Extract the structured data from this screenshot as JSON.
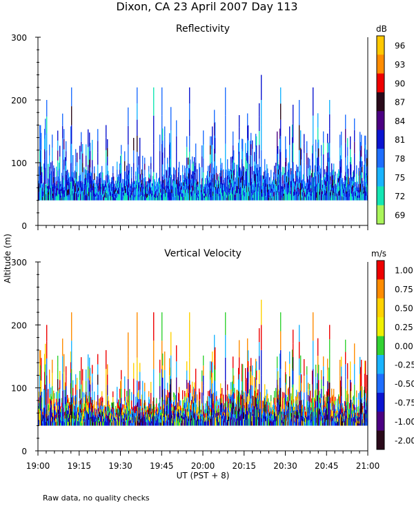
{
  "page": {
    "title": "Dixon, CA 23 April 2007  Day 113",
    "ylabel": "Altitude (m)",
    "xlabel": "UT  (PST + 8)",
    "footnote": "Raw data, no quality checks",
    "xticks": [
      "19:00",
      "19:15",
      "19:30",
      "19:45",
      "20:00",
      "20:15",
      "20:30",
      "20:45",
      "21:00"
    ]
  },
  "chart_data": [
    {
      "type": "heatmap",
      "title": "Reflectivity",
      "ylabel": "Altitude (m)",
      "xlabel": "UT  (PST + 8)",
      "yticks": [
        "300",
        "200",
        "100",
        "0"
      ],
      "ylim": [
        0,
        300
      ],
      "x_range": [
        "19:00",
        "21:00"
      ],
      "colorbar": {
        "unit": "dB",
        "labels": [
          "96",
          "93",
          "90",
          "87",
          "84",
          "81",
          "78",
          "75",
          "72",
          "69"
        ],
        "colors": [
          "#ffc800",
          "#ff8c00",
          "#ee0000",
          "#2a0a1a",
          "#4b0082",
          "#0a14d0",
          "#1e6eff",
          "#19b4ff",
          "#14e6b4",
          "#aaf55a"
        ]
      },
      "lowest_gate_m": 40,
      "typical_echo_top_m": [
        60,
        100
      ],
      "max_echo_top_m": 240,
      "peak_echo_tops": [
        {
          "time": "19:03",
          "alt": 200
        },
        {
          "time": "19:12",
          "alt": 220
        },
        {
          "time": "19:36",
          "alt": 220
        },
        {
          "time": "19:42",
          "alt": 220
        },
        {
          "time": "19:45",
          "alt": 220
        },
        {
          "time": "19:55",
          "alt": 220
        },
        {
          "time": "20:08",
          "alt": 220
        },
        {
          "time": "20:21",
          "alt": 240
        },
        {
          "time": "20:28",
          "alt": 220
        },
        {
          "time": "20:35",
          "alt": 200
        },
        {
          "time": "20:40",
          "alt": 220
        },
        {
          "time": "20:46",
          "alt": 200
        }
      ]
    },
    {
      "type": "heatmap",
      "title": "Vertical Velocity",
      "ylabel": "Altitude (m)",
      "xlabel": "UT  (PST + 8)",
      "yticks": [
        "300",
        "200",
        "100",
        "0"
      ],
      "ylim": [
        0,
        300
      ],
      "x_range": [
        "19:00",
        "21:00"
      ],
      "colorbar": {
        "unit": "m/s",
        "labels": [
          "1.00",
          "0.75",
          "0.50",
          "0.25",
          "0.00",
          "-0.25",
          "-0.50",
          "-0.75",
          "-1.00",
          "-2.00"
        ],
        "colors": [
          "#ee0000",
          "#ff8c00",
          "#ffd200",
          "#f0f000",
          "#32d232",
          "#19b4ff",
          "#1e6eff",
          "#0a14d0",
          "#4b0082",
          "#2a0a1a"
        ]
      },
      "lowest_gate_m": 40,
      "typical_echo_top_m": [
        60,
        100
      ],
      "max_echo_top_m": 240,
      "peak_echo_tops": [
        {
          "time": "19:03",
          "alt": 200
        },
        {
          "time": "19:12",
          "alt": 220
        },
        {
          "time": "19:36",
          "alt": 220
        },
        {
          "time": "19:42",
          "alt": 220
        },
        {
          "time": "19:45",
          "alt": 220
        },
        {
          "time": "19:55",
          "alt": 220
        },
        {
          "time": "20:08",
          "alt": 220
        },
        {
          "time": "20:21",
          "alt": 240
        },
        {
          "time": "20:28",
          "alt": 220
        },
        {
          "time": "20:35",
          "alt": 200
        },
        {
          "time": "20:40",
          "alt": 220
        },
        {
          "time": "20:46",
          "alt": 200
        }
      ]
    }
  ]
}
